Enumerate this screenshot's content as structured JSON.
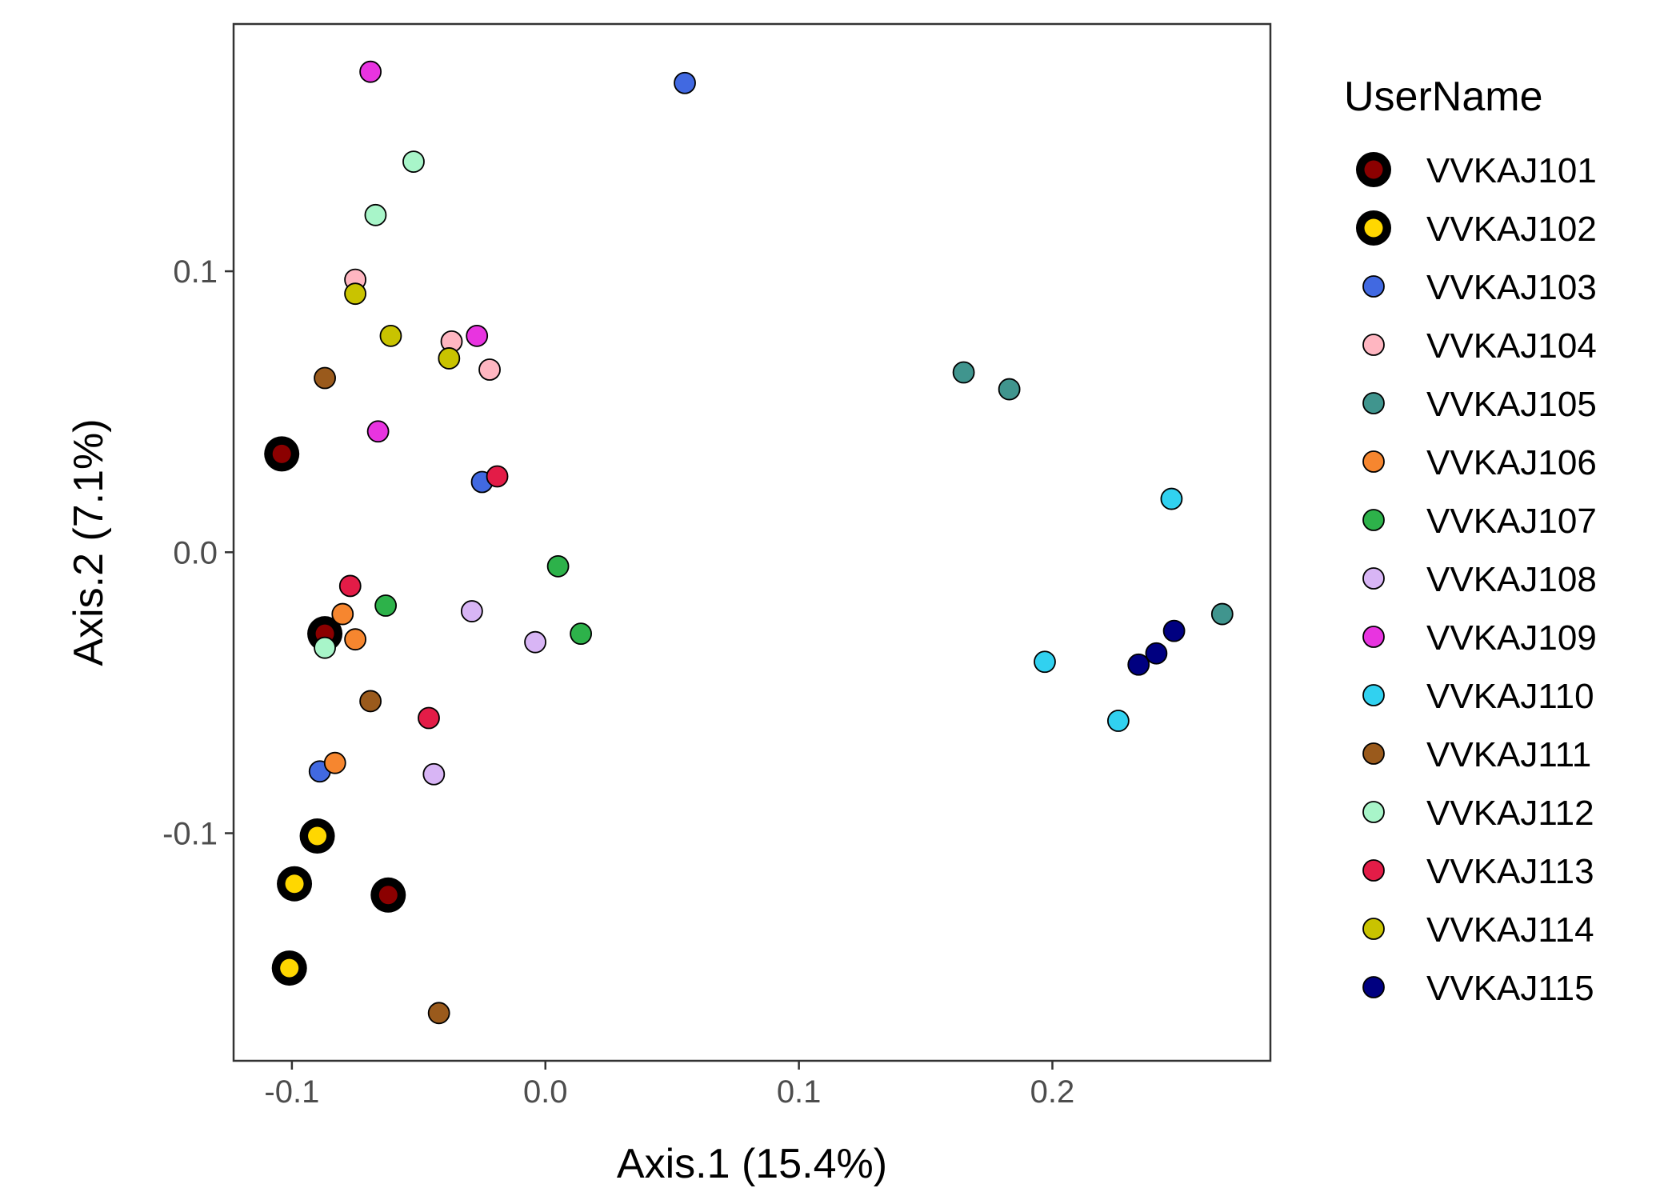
{
  "chart_data": {
    "type": "scatter",
    "xlabel": "Axis.1 (15.4%)",
    "ylabel": "Axis.2 (7.1%)",
    "xlim": [
      -0.123,
      0.286
    ],
    "ylim": [
      -0.181,
      0.188
    ],
    "x_ticks": [
      -0.1,
      0.0,
      0.1,
      0.2
    ],
    "x_tick_labels": [
      "-0.1",
      "0.0",
      "0.1",
      "0.2"
    ],
    "y_ticks": [
      -0.1,
      0.0,
      0.1
    ],
    "y_tick_labels": [
      "-0.1",
      "0.0",
      "0.1"
    ],
    "grid": false,
    "legend": {
      "title": "UserName",
      "position": "right"
    },
    "series": [
      {
        "name": "VVKAJ101",
        "color": "#8b0000",
        "highlight": true,
        "x": [
          -0.104,
          -0.087,
          -0.062
        ],
        "y": [
          0.035,
          -0.029,
          -0.122
        ]
      },
      {
        "name": "VVKAJ102",
        "color": "#ffd700",
        "highlight": true,
        "x": [
          -0.09,
          -0.099,
          -0.101
        ],
        "y": [
          -0.101,
          -0.118,
          -0.148
        ]
      },
      {
        "name": "VVKAJ103",
        "color": "#4169e1",
        "highlight": false,
        "x": [
          0.055,
          -0.025,
          -0.089
        ],
        "y": [
          0.167,
          0.025,
          -0.078
        ]
      },
      {
        "name": "VVKAJ104",
        "color": "#ffb6c1",
        "highlight": false,
        "x": [
          -0.075,
          -0.037,
          -0.022
        ],
        "y": [
          0.097,
          0.075,
          0.065
        ]
      },
      {
        "name": "VVKAJ105",
        "color": "#40958e",
        "highlight": false,
        "x": [
          0.165,
          0.183,
          0.267
        ],
        "y": [
          0.064,
          0.058,
          -0.022
        ]
      },
      {
        "name": "VVKAJ106",
        "color": "#f6862f",
        "highlight": false,
        "x": [
          -0.08,
          -0.075,
          -0.083
        ],
        "y": [
          -0.022,
          -0.031,
          -0.075
        ]
      },
      {
        "name": "VVKAJ107",
        "color": "#2db24a",
        "highlight": false,
        "x": [
          0.005,
          -0.063,
          0.014
        ],
        "y": [
          -0.005,
          -0.019,
          -0.029
        ]
      },
      {
        "name": "VVKAJ108",
        "color": "#d8b5f5",
        "highlight": false,
        "x": [
          -0.029,
          -0.004,
          -0.044
        ],
        "y": [
          -0.021,
          -0.032,
          -0.079
        ]
      },
      {
        "name": "VVKAJ109",
        "color": "#e834e0",
        "highlight": false,
        "x": [
          -0.069,
          -0.027,
          -0.066
        ],
        "y": [
          0.171,
          0.077,
          0.043
        ]
      },
      {
        "name": "VVKAJ110",
        "color": "#31d1f0",
        "highlight": false,
        "x": [
          0.247,
          0.197,
          0.226
        ],
        "y": [
          0.019,
          -0.039,
          -0.06
        ]
      },
      {
        "name": "VVKAJ111",
        "color": "#9a5a1c",
        "highlight": false,
        "x": [
          -0.087,
          -0.069,
          -0.042
        ],
        "y": [
          0.062,
          -0.053,
          -0.164
        ]
      },
      {
        "name": "VVKAJ112",
        "color": "#a8f5c9",
        "highlight": false,
        "x": [
          -0.052,
          -0.067,
          -0.087
        ],
        "y": [
          0.139,
          0.12,
          -0.034
        ]
      },
      {
        "name": "VVKAJ113",
        "color": "#e31c47",
        "highlight": false,
        "x": [
          -0.019,
          -0.077,
          -0.046
        ],
        "y": [
          0.027,
          -0.012,
          -0.059
        ]
      },
      {
        "name": "VVKAJ114",
        "color": "#c9c300",
        "highlight": false,
        "x": [
          -0.075,
          -0.061,
          -0.038
        ],
        "y": [
          0.092,
          0.077,
          0.069
        ]
      },
      {
        "name": "VVKAJ115",
        "color": "#000080",
        "highlight": false,
        "x": [
          0.248,
          0.241,
          0.234
        ],
        "y": [
          -0.028,
          -0.036,
          -0.04
        ]
      }
    ]
  }
}
